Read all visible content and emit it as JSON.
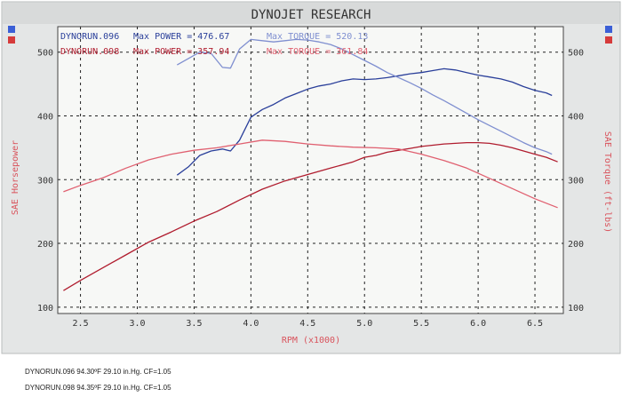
{
  "chart_data": {
    "type": "line",
    "title": "DYNOJET RESEARCH",
    "xlabel": "RPM (x1000)",
    "ylabel_left": "SAE Horsepower",
    "ylabel_right": "SAE Torque (ft-lbs)",
    "xlim": [
      2.3,
      6.75
    ],
    "ylim": [
      90,
      540
    ],
    "xticks": [
      "2.5",
      "3.0",
      "3.5",
      "4.0",
      "4.5",
      "5.0",
      "5.5",
      "6.0",
      "6.5"
    ],
    "xtick_values": [
      2.5,
      3.0,
      3.5,
      4.0,
      4.5,
      5.0,
      5.5,
      6.0,
      6.5
    ],
    "yticks": [
      "100",
      "200",
      "300",
      "400",
      "500"
    ],
    "ytick_values": [
      100,
      200,
      300,
      400,
      500
    ],
    "grid": true,
    "legend": [
      {
        "run": "DYNORUN.096",
        "power_text": "Max POWER = 476.67",
        "torque_text": "Max TORQUE = 520.13",
        "color": "#2a3f9a",
        "torque_color": "#7f8fd0"
      },
      {
        "run": "DYNORUN.098",
        "power_text": "Max POWER = 357.94",
        "torque_text": "Max TORQUE = 361.84",
        "color": "#b01c2e",
        "torque_color": "#e06070"
      }
    ],
    "series": [
      {
        "name": "DYNORUN.096",
        "color": "#2a3f9a",
        "x": [
          3.35,
          3.45,
          3.55,
          3.65,
          3.75,
          3.82,
          3.9,
          4.0,
          4.1,
          4.2,
          4.3,
          4.4,
          4.5,
          4.6,
          4.7,
          4.8,
          4.9,
          5.0,
          5.1,
          5.2,
          5.3,
          5.4,
          5.5,
          5.6,
          5.7,
          5.8,
          5.9,
          6.0,
          6.1,
          6.2,
          6.3,
          6.4,
          6.5,
          6.6,
          6.65
        ],
        "y": [
          307,
          320,
          338,
          345,
          348,
          345,
          362,
          398,
          410,
          418,
          428,
          435,
          442,
          447,
          450,
          455,
          458,
          457,
          458,
          460,
          463,
          466,
          468,
          471,
          474,
          472,
          468,
          464,
          461,
          458,
          453,
          446,
          440,
          436,
          432
        ]
      },
      {
        "name": "",
        "color": "#7f8fd0",
        "x": [
          3.35,
          3.45,
          3.55,
          3.65,
          3.75,
          3.82,
          3.9,
          4.0,
          4.1,
          4.2,
          4.3,
          4.4,
          4.5,
          4.6,
          4.7,
          4.8,
          4.9,
          5.0,
          5.1,
          5.2,
          5.3,
          5.4,
          5.5,
          5.6,
          5.7,
          5.8,
          5.9,
          6.0,
          6.1,
          6.2,
          6.3,
          6.4,
          6.5,
          6.6,
          6.65
        ],
        "y": [
          480,
          490,
          500,
          498,
          476,
          475,
          505,
          520,
          518,
          516,
          518,
          520,
          519,
          516,
          512,
          505,
          496,
          487,
          478,
          468,
          460,
          452,
          443,
          433,
          424,
          414,
          404,
          394,
          385,
          376,
          367,
          358,
          350,
          344,
          340
        ]
      },
      {
        "name": "DYNORUN.098",
        "color": "#b01c2e",
        "x": [
          2.35,
          2.5,
          2.7,
          2.9,
          3.1,
          3.3,
          3.5,
          3.7,
          3.9,
          4.1,
          4.3,
          4.5,
          4.7,
          4.9,
          5.0,
          5.1,
          5.2,
          5.3,
          5.4,
          5.5,
          5.6,
          5.7,
          5.8,
          5.9,
          6.0,
          6.1,
          6.2,
          6.3,
          6.4,
          6.5,
          6.6,
          6.7
        ],
        "y": [
          126,
          142,
          162,
          182,
          202,
          218,
          235,
          250,
          268,
          285,
          298,
          308,
          318,
          328,
          335,
          338,
          343,
          346,
          349,
          352,
          354,
          356,
          357,
          358,
          358,
          357,
          354,
          350,
          345,
          340,
          335,
          328
        ]
      },
      {
        "name": "",
        "color": "#e06070",
        "x": [
          2.35,
          2.5,
          2.7,
          2.9,
          3.1,
          3.3,
          3.5,
          3.7,
          3.9,
          4.1,
          4.3,
          4.5,
          4.7,
          4.9,
          5.1,
          5.3,
          5.5,
          5.7,
          5.9,
          6.1,
          6.3,
          6.5,
          6.7
        ],
        "y": [
          281,
          291,
          303,
          318,
          331,
          340,
          346,
          350,
          356,
          362,
          360,
          356,
          353,
          351,
          350,
          348,
          340,
          330,
          318,
          302,
          286,
          270,
          256
        ]
      }
    ]
  },
  "footer": {
    "line1": "DYNORUN.096 94.30ºF 29.10 in.Hg. CF=1.05",
    "line2": "DYNORUN.098 94.35ºF 29.10 in.Hg. CF=1.05"
  },
  "colors": {
    "frame_bg": "#e4e6e6",
    "plot_bg": "#f7f8f6",
    "grid": "#222222",
    "corner_blue": "#3b5fd6",
    "corner_red": "#d63b3b",
    "axis_label_red": "#d9535c"
  }
}
